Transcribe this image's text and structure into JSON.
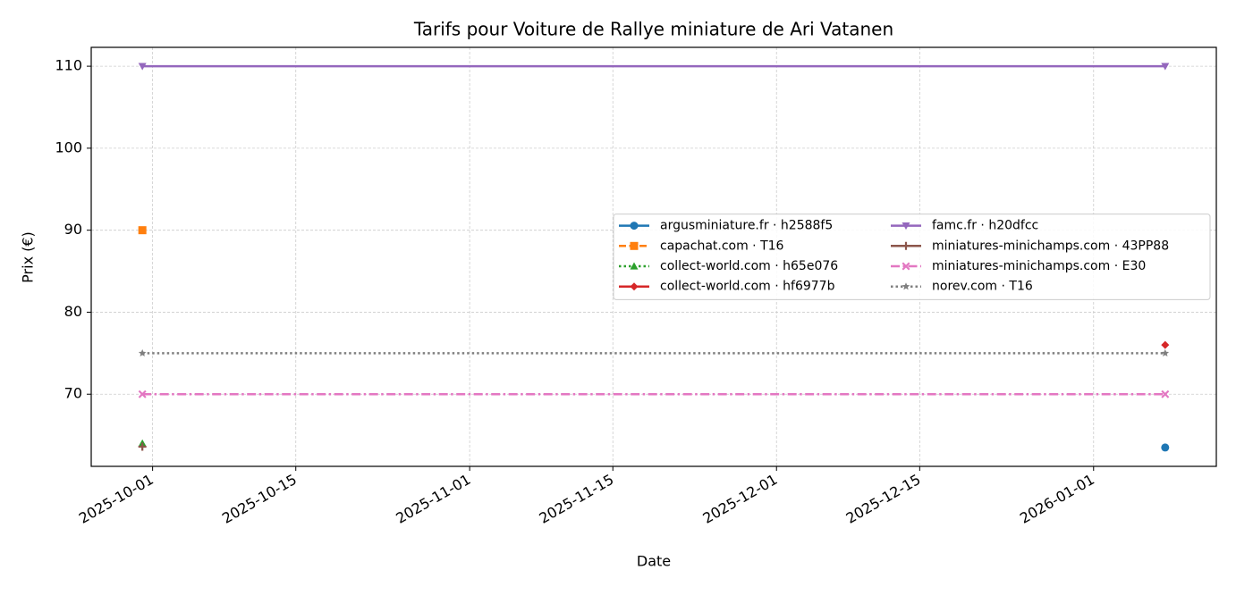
{
  "chart_data": {
    "type": "line",
    "title": "Tarifs pour Voiture de Rallye miniature de Ari Vatanen",
    "x_label": "Date",
    "y_label": "Prix (€)",
    "x": [
      "2025-09-30",
      "2026-01-08"
    ],
    "xlim": [
      "2025-09-25",
      "2026-01-13"
    ],
    "xticks": [
      "2025-10-01",
      "2025-10-15",
      "2025-11-01",
      "2025-11-15",
      "2025-12-01",
      "2025-12-15",
      "2026-01-01"
    ],
    "ylim": [
      61.2,
      112.3
    ],
    "yticks": [
      70,
      80,
      90,
      100,
      110
    ],
    "grid": true,
    "legend": "center right",
    "series": [
      {
        "name": "argusminiature.fr · h2588f5",
        "color": "#1f77b4",
        "marker": "circle",
        "linestyle": "solid",
        "values": [
          null,
          63.5
        ]
      },
      {
        "name": "capachat.com · T16",
        "color": "#ff7f0e",
        "marker": "square",
        "linestyle": "dashed",
        "values": [
          90,
          null
        ]
      },
      {
        "name": "collect-world.com · h65e076",
        "color": "#2ca02c",
        "marker": "triangle-up",
        "linestyle": "dotted",
        "values": [
          64,
          null
        ]
      },
      {
        "name": "collect-world.com · hf6977b",
        "color": "#d62728",
        "marker": "diamond",
        "linestyle": "solid",
        "values": [
          null,
          76
        ]
      },
      {
        "name": "famc.fr · h20dfcc",
        "color": "#9467bd",
        "marker": "triangle-down",
        "linestyle": "solid",
        "values": [
          110,
          110
        ]
      },
      {
        "name": "miniatures-minichamps.com · 43PP88",
        "color": "#8c564b",
        "marker": "plus",
        "linestyle": "solid",
        "values": [
          63.6,
          null
        ]
      },
      {
        "name": "miniatures-minichamps.com · E30",
        "color": "#e377c2",
        "marker": "x",
        "linestyle": "dashdot",
        "values": [
          70,
          70
        ]
      },
      {
        "name": "norev.com · T16",
        "color": "#7f7f7f",
        "marker": "star",
        "linestyle": "dotted",
        "values": [
          75,
          75
        ]
      }
    ]
  }
}
